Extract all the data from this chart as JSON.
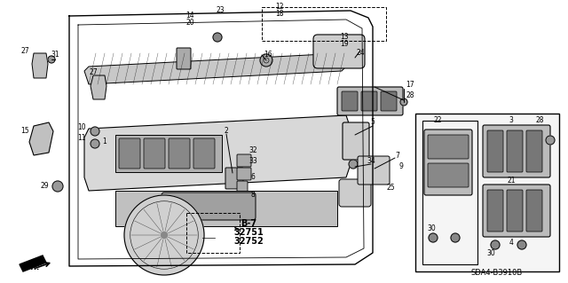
{
  "bg": "#ffffff",
  "fig_w": 6.4,
  "fig_h": 3.19,
  "dpi": 100,
  "diagram_id": "SDA4-B3910B",
  "ref_lines": [
    "B-7",
    "32751",
    "32752"
  ]
}
